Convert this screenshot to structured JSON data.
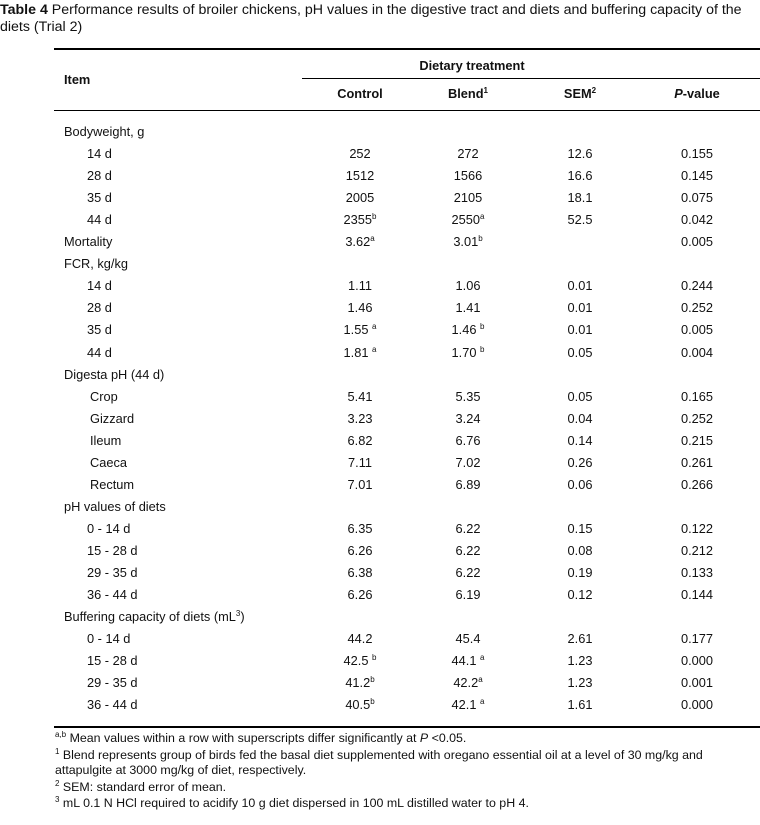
{
  "caption": {
    "label": "Table 4",
    "text": " Performance results of broiler chickens, pH values in the digestive tract and diets and buffering capacity of the diets (Trial 2)"
  },
  "header": {
    "item": "Item",
    "group": "Dietary treatment",
    "cols": [
      {
        "text": "Control",
        "sup": "",
        "italic_p": false
      },
      {
        "text": "Blend",
        "sup": "1",
        "italic_p": false
      },
      {
        "text": "SEM",
        "sup": "2",
        "italic_p": false
      },
      {
        "text": "-value",
        "sup": "",
        "italic_p": true,
        "prefix": "P"
      }
    ]
  },
  "rows": [
    {
      "label": "Bodyweight, g",
      "indent": 0,
      "cells": []
    },
    {
      "label": "14 d",
      "indent": 1,
      "cells": [
        [
          "252",
          ""
        ],
        [
          "272",
          ""
        ],
        [
          "12.6",
          ""
        ],
        [
          "0.155",
          ""
        ]
      ]
    },
    {
      "label": "28 d",
      "indent": 1,
      "cells": [
        [
          "1512",
          ""
        ],
        [
          "1566",
          ""
        ],
        [
          "16.6",
          ""
        ],
        [
          "0.145",
          ""
        ]
      ]
    },
    {
      "label": "35 d",
      "indent": 1,
      "cells": [
        [
          "2005",
          ""
        ],
        [
          "2105",
          ""
        ],
        [
          "18.1",
          ""
        ],
        [
          "0.075",
          ""
        ]
      ]
    },
    {
      "label": "44 d",
      "indent": 1,
      "cells": [
        [
          "2355",
          "b"
        ],
        [
          "2550",
          "a"
        ],
        [
          "52.5",
          ""
        ],
        [
          "0.042",
          ""
        ]
      ]
    },
    {
      "label": "Mortality",
      "indent": 0,
      "cells": [
        [
          "3.62",
          "a"
        ],
        [
          "3.01",
          "b"
        ],
        [
          "",
          ""
        ],
        [
          "0.005",
          ""
        ]
      ]
    },
    {
      "label": "FCR, kg/kg",
      "indent": 0,
      "cells": []
    },
    {
      "label": "14 d",
      "indent": 1,
      "cells": [
        [
          "1.11",
          ""
        ],
        [
          "1.06",
          ""
        ],
        [
          "0.01",
          ""
        ],
        [
          "0.244",
          ""
        ]
      ]
    },
    {
      "label": "28 d",
      "indent": 1,
      "cells": [
        [
          "1.46",
          ""
        ],
        [
          "1.41",
          ""
        ],
        [
          "0.01",
          ""
        ],
        [
          "0.252",
          ""
        ]
      ]
    },
    {
      "label": "35 d",
      "indent": 1,
      "cells": [
        [
          "1.55 ",
          "a"
        ],
        [
          "1.46 ",
          "b"
        ],
        [
          "0.01",
          ""
        ],
        [
          "0.005",
          ""
        ]
      ]
    },
    {
      "label": "44 d",
      "indent": 1,
      "cells": [
        [
          "1.81 ",
          "a"
        ],
        [
          "1.70 ",
          "b"
        ],
        [
          "0.05",
          ""
        ],
        [
          "0.004",
          ""
        ]
      ]
    },
    {
      "label": "Digesta pH (44 d)",
      "indent": 0,
      "cells": []
    },
    {
      "label": "Crop",
      "indent": 2,
      "cells": [
        [
          "5.41",
          ""
        ],
        [
          "5.35",
          ""
        ],
        [
          "0.05",
          ""
        ],
        [
          "0.165",
          ""
        ]
      ]
    },
    {
      "label": "Gizzard",
      "indent": 2,
      "cells": [
        [
          "3.23",
          ""
        ],
        [
          "3.24",
          ""
        ],
        [
          "0.04",
          ""
        ],
        [
          "0.252",
          ""
        ]
      ]
    },
    {
      "label": "Ileum",
      "indent": 2,
      "cells": [
        [
          "6.82",
          ""
        ],
        [
          "6.76",
          ""
        ],
        [
          "0.14",
          ""
        ],
        [
          "0.215",
          ""
        ]
      ]
    },
    {
      "label": "Caeca",
      "indent": 2,
      "cells": [
        [
          "7.11",
          ""
        ],
        [
          "7.02",
          ""
        ],
        [
          "0.26",
          ""
        ],
        [
          "0.261",
          ""
        ]
      ]
    },
    {
      "label": "Rectum",
      "indent": 2,
      "cells": [
        [
          "7.01",
          ""
        ],
        [
          "6.89",
          ""
        ],
        [
          "0.06",
          ""
        ],
        [
          "0.266",
          ""
        ]
      ]
    },
    {
      "label": "pH values of diets",
      "indent": 0,
      "cells": []
    },
    {
      "label": "0 - 14 d",
      "indent": 1,
      "cells": [
        [
          "6.35",
          ""
        ],
        [
          "6.22",
          ""
        ],
        [
          "0.15",
          ""
        ],
        [
          "0.122",
          ""
        ]
      ]
    },
    {
      "label": "15 - 28 d",
      "indent": 1,
      "cells": [
        [
          "6.26",
          ""
        ],
        [
          "6.22",
          ""
        ],
        [
          "0.08",
          ""
        ],
        [
          "0.212",
          ""
        ]
      ]
    },
    {
      "label": "29 - 35 d",
      "indent": 1,
      "cells": [
        [
          "6.38",
          ""
        ],
        [
          "6.22",
          ""
        ],
        [
          "0.19",
          ""
        ],
        [
          "0.133",
          ""
        ]
      ]
    },
    {
      "label": "36 - 44 d",
      "indent": 1,
      "cells": [
        [
          "6.26",
          ""
        ],
        [
          "6.19",
          ""
        ],
        [
          "0.12",
          ""
        ],
        [
          "0.144",
          ""
        ]
      ]
    },
    {
      "label": "Buffering capacity of diets (mL",
      "label_sup": "3",
      "label_after": ")",
      "indent": 0,
      "cells": []
    },
    {
      "label": "0 - 14 d",
      "indent": 1,
      "cells": [
        [
          "44.2",
          ""
        ],
        [
          "45.4",
          ""
        ],
        [
          "2.61",
          ""
        ],
        [
          "0.177",
          ""
        ]
      ]
    },
    {
      "label": "15 - 28 d",
      "indent": 1,
      "cells": [
        [
          "42.5 ",
          "b"
        ],
        [
          "44.1 ",
          "a"
        ],
        [
          "1.23",
          ""
        ],
        [
          "0.000",
          ""
        ]
      ]
    },
    {
      "label": "29 - 35 d",
      "indent": 1,
      "cells": [
        [
          "41.2",
          "b"
        ],
        [
          "42.2",
          "a"
        ],
        [
          "1.23",
          ""
        ],
        [
          "0.001",
          ""
        ]
      ]
    },
    {
      "label": "36 - 44 d",
      "indent": 1,
      "cells": [
        [
          "40.5",
          "b"
        ],
        [
          "42.1 ",
          "a"
        ],
        [
          "1.61",
          ""
        ],
        [
          "0.000",
          ""
        ]
      ]
    }
  ],
  "footnotes": [
    {
      "sup": "a,b",
      "text": " Mean values within a row with superscripts differ significantly at ",
      "italic": "P",
      "after": " <0.05."
    },
    {
      "sup": "1",
      "text": " Blend represents group of birds fed the basal diet supplemented with oregano essential oil at a level of 30 mg/kg and attapulgite at 3000 mg/kg of diet, respectively.",
      "italic": "",
      "after": ""
    },
    {
      "sup": "2",
      "text": " SEM: standard error of mean.",
      "italic": "",
      "after": ""
    },
    {
      "sup": "3",
      "text": " mL 0.1 N HCl required to acidify 10 g diet dispersed in 100 mL distilled water to pH 4.",
      "italic": "",
      "after": ""
    }
  ]
}
